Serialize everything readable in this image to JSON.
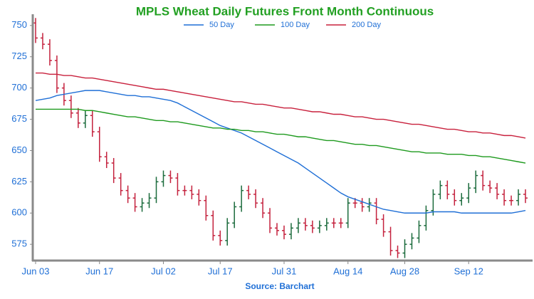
{
  "chart_data": {
    "type": "ohlc",
    "title": "MPLS Wheat Daily Futures Front Month Continuous",
    "source": "Source: Barchart",
    "legend": "top",
    "up_color": "#1b6b3c",
    "down_color": "#c4213d",
    "categories": [
      "Jun 03",
      null,
      null,
      null,
      null,
      null,
      null,
      null,
      null,
      "Jun 17",
      null,
      null,
      null,
      null,
      null,
      null,
      null,
      null,
      "Jul 02",
      null,
      null,
      null,
      null,
      null,
      null,
      null,
      "Jul 17",
      null,
      null,
      null,
      null,
      null,
      null,
      null,
      null,
      "Jul 31",
      null,
      null,
      null,
      null,
      null,
      null,
      null,
      null,
      "Aug 14",
      null,
      null,
      null,
      null,
      null,
      null,
      null,
      "Aug 28",
      null,
      null,
      null,
      null,
      null,
      null,
      null,
      null,
      "Sep 12",
      null,
      null,
      null,
      null,
      null,
      null,
      null,
      null
    ],
    "open": [
      752,
      740,
      735,
      722,
      700,
      690,
      680,
      672,
      678,
      665,
      645,
      640,
      628,
      618,
      612,
      605,
      608,
      612,
      625,
      630,
      628,
      618,
      618,
      615,
      610,
      598,
      582,
      578,
      592,
      605,
      618,
      615,
      608,
      600,
      588,
      586,
      583,
      588,
      592,
      590,
      588,
      590,
      592,
      592,
      592,
      608,
      608,
      605,
      608,
      595,
      585,
      570,
      568,
      575,
      580,
      590,
      602,
      615,
      622,
      615,
      610,
      612,
      620,
      630,
      622,
      620,
      615,
      610,
      610,
      615
    ],
    "high": [
      756,
      744,
      739,
      726,
      704,
      694,
      684,
      682,
      682,
      669,
      649,
      644,
      632,
      622,
      616,
      612,
      616,
      629,
      634,
      634,
      632,
      622,
      622,
      619,
      614,
      602,
      586,
      596,
      609,
      622,
      622,
      619,
      612,
      604,
      592,
      590,
      592,
      596,
      596,
      594,
      594,
      596,
      596,
      596,
      612,
      612,
      612,
      612,
      612,
      599,
      589,
      574,
      579,
      584,
      594,
      606,
      619,
      626,
      626,
      619,
      616,
      624,
      634,
      634,
      626,
      624,
      619,
      614,
      619,
      619
    ],
    "low": [
      736,
      731,
      718,
      696,
      686,
      676,
      668,
      668,
      661,
      641,
      636,
      624,
      614,
      608,
      601,
      601,
      604,
      608,
      621,
      624,
      614,
      614,
      611,
      606,
      594,
      578,
      574,
      574,
      588,
      601,
      611,
      604,
      596,
      584,
      582,
      579,
      579,
      584,
      586,
      584,
      584,
      586,
      588,
      588,
      588,
      604,
      601,
      601,
      591,
      581,
      566,
      564,
      564,
      571,
      576,
      586,
      598,
      611,
      611,
      606,
      606,
      608,
      616,
      618,
      616,
      611,
      606,
      606,
      606,
      608
    ],
    "close": [
      740,
      735,
      722,
      700,
      690,
      680,
      672,
      678,
      665,
      645,
      640,
      628,
      618,
      612,
      605,
      608,
      612,
      625,
      630,
      628,
      618,
      618,
      615,
      610,
      598,
      582,
      578,
      592,
      605,
      618,
      615,
      608,
      600,
      588,
      586,
      583,
      588,
      592,
      590,
      588,
      590,
      592,
      592,
      592,
      608,
      608,
      605,
      608,
      595,
      585,
      570,
      568,
      575,
      580,
      590,
      602,
      615,
      622,
      615,
      610,
      612,
      620,
      630,
      622,
      620,
      615,
      610,
      610,
      615,
      612
    ],
    "series": [
      {
        "name": "50 Day",
        "color": "#1f6fd6",
        "values": [
          690,
          691,
          692,
          694,
          695,
          696,
          697,
          698,
          698,
          698,
          697,
          696,
          695,
          694,
          694,
          693,
          693,
          692,
          691,
          690,
          688,
          685,
          682,
          679,
          676,
          673,
          670,
          668,
          666,
          664,
          661,
          658,
          655,
          652,
          649,
          646,
          643,
          640,
          636,
          632,
          628,
          624,
          620,
          616,
          613,
          611,
          609,
          607,
          605,
          603,
          602,
          601,
          600,
          600,
          600,
          600,
          601,
          601,
          601,
          601,
          600,
          600,
          600,
          600,
          600,
          600,
          600,
          600,
          601,
          602
        ]
      },
      {
        "name": "100 Day",
        "color": "#1e9a1e",
        "values": [
          683,
          683,
          683,
          683,
          683,
          683,
          683,
          682,
          682,
          681,
          680,
          679,
          678,
          677,
          677,
          676,
          675,
          674,
          674,
          673,
          673,
          672,
          671,
          670,
          669,
          668,
          668,
          667,
          667,
          666,
          666,
          665,
          665,
          664,
          663,
          663,
          662,
          661,
          661,
          660,
          659,
          658,
          658,
          657,
          656,
          655,
          655,
          654,
          654,
          653,
          652,
          651,
          650,
          649,
          649,
          648,
          648,
          648,
          647,
          647,
          647,
          646,
          646,
          645,
          645,
          644,
          643,
          642,
          641,
          640
        ]
      },
      {
        "name": "200 Day",
        "color": "#c8203c",
        "values": [
          712,
          712,
          711,
          711,
          710,
          710,
          709,
          708,
          708,
          707,
          706,
          705,
          704,
          703,
          702,
          701,
          700,
          699,
          699,
          698,
          697,
          696,
          695,
          694,
          693,
          692,
          691,
          690,
          689,
          689,
          688,
          687,
          687,
          686,
          685,
          684,
          684,
          683,
          682,
          681,
          681,
          680,
          679,
          679,
          678,
          677,
          677,
          676,
          675,
          675,
          674,
          673,
          672,
          671,
          671,
          670,
          669,
          668,
          667,
          667,
          666,
          665,
          665,
          664,
          664,
          663,
          662,
          662,
          661,
          660
        ]
      }
    ],
    "ylim": [
      562,
      759
    ],
    "yticks": [
      575,
      600,
      625,
      650,
      675,
      700,
      725,
      750
    ]
  }
}
